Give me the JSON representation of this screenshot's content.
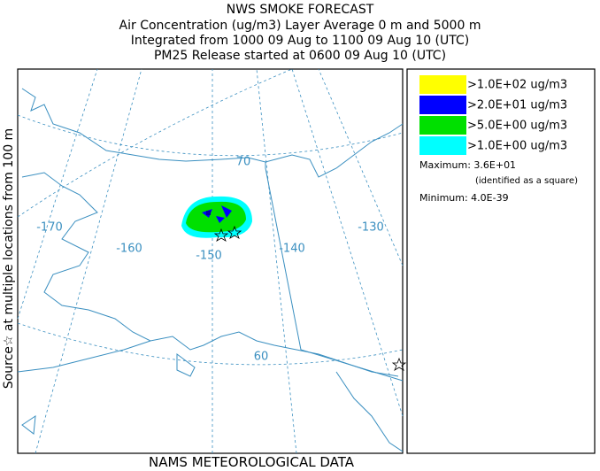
{
  "header": {
    "title": "NWS SMOKE FORECAST",
    "lines": [
      "Air Concentration (ug/m3) Layer Average    0 m and  5000 m",
      "Integrated from 1000 09 Aug to 1100 09 Aug 10 (UTC)",
      "PM25 Release started at 0600 09 Aug 10 (UTC)"
    ]
  },
  "side_label": "Source☆  at multiple locations    from    100 m",
  "footer": "NAMS METEOROLOGICAL DATA",
  "map": {
    "labels": [
      "-170",
      "-160",
      "-150",
      "-140",
      "-130",
      "70",
      "60"
    ]
  },
  "legend": {
    "entries": [
      {
        "label": ">1.0E+02 ug/m3",
        "color": "#ffff00"
      },
      {
        "label": ">2.0E+01 ug/m3",
        "color": "#0000ff"
      },
      {
        "label": ">5.0E+00 ug/m3",
        "color": "#00e000"
      },
      {
        "label": ">1.0E+00 ug/m3",
        "color": "#00ffff"
      }
    ],
    "maximum": "Maximum: 3.6E+01",
    "maximum_note": "(identified as a square)",
    "minimum": "Minimum: 4.0E-39"
  }
}
